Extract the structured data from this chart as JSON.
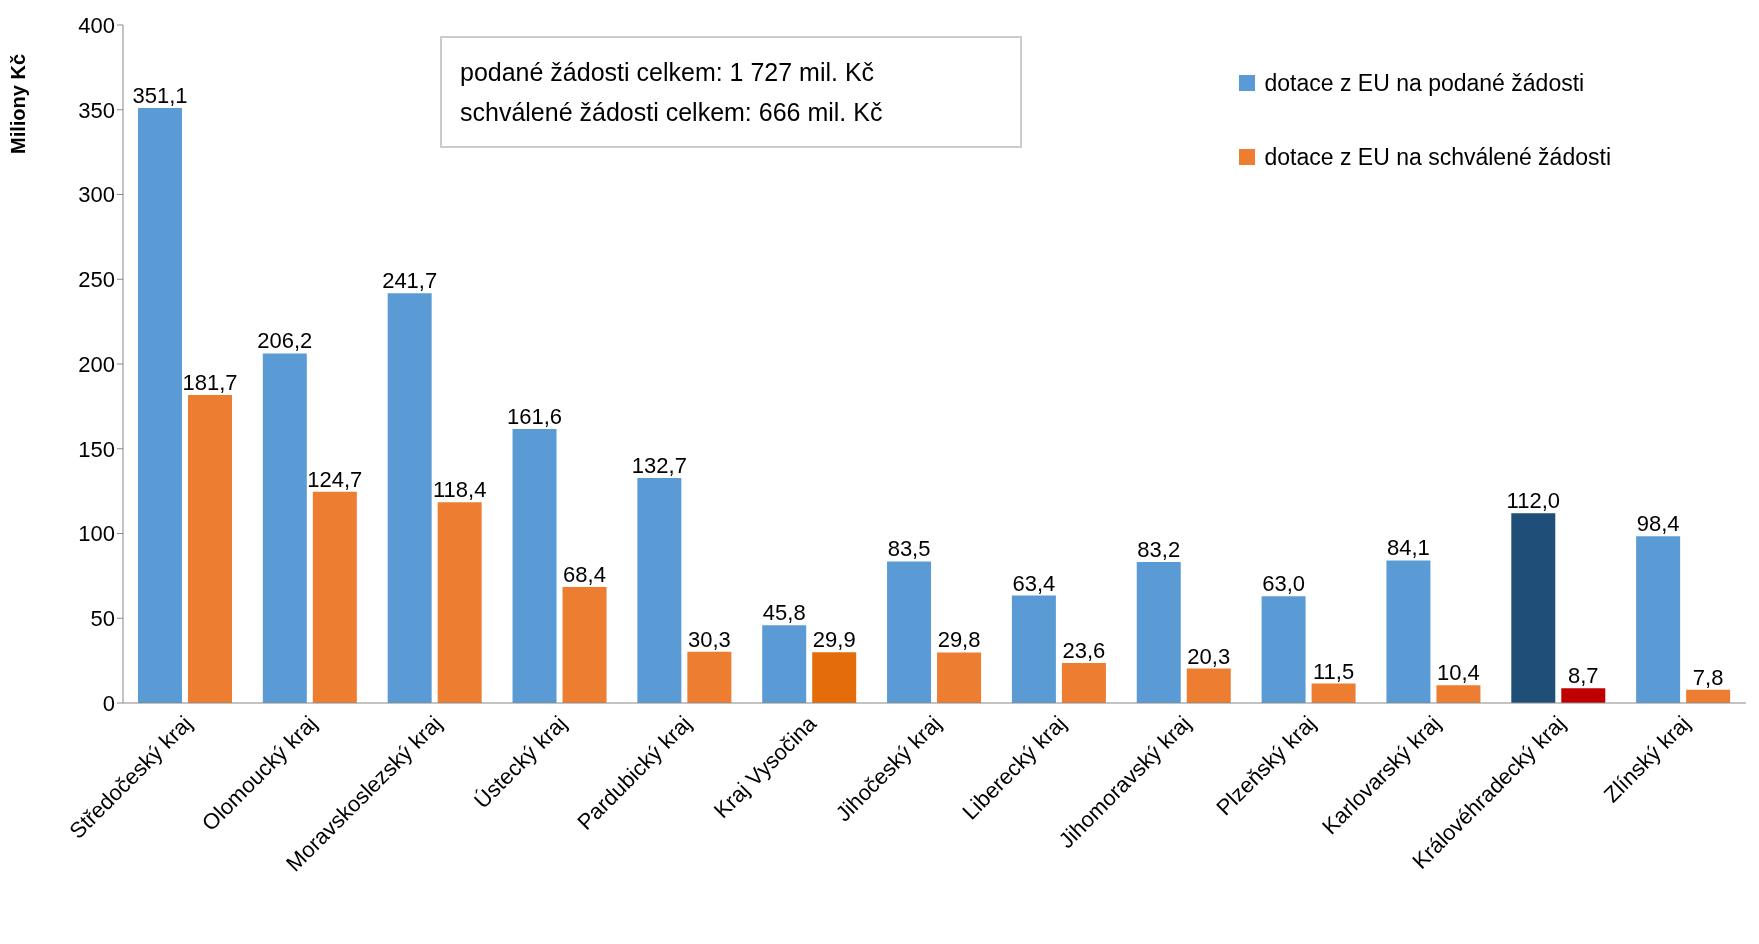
{
  "chart_data": {
    "type": "bar",
    "ylabel": "Miliony Kč",
    "categories": [
      "Středočeský kraj",
      "Olomoucký kraj",
      "Moravskoslezský kraj",
      "Ústecký kraj",
      "Pardubický kraj",
      "Kraj Vysočina",
      "Jihočeský kraj",
      "Liberecký kraj",
      "Jihomoravský kraj",
      "Plzeňský kraj",
      "Karlovarský kraj",
      "Královéhradecký kraj",
      "Zlínský kraj"
    ],
    "series": [
      {
        "name": "dotace z EU na podané žádosti",
        "color": "#5b9bd5",
        "colors": [
          "#5b9bd5",
          "#5b9bd5",
          "#5b9bd5",
          "#5b9bd5",
          "#5b9bd5",
          "#5b9bd5",
          "#5b9bd5",
          "#5b9bd5",
          "#5b9bd5",
          "#5b9bd5",
          "#5b9bd5",
          "#1f4e79",
          "#5b9bd5"
        ],
        "values": [
          351.1,
          206.2,
          241.7,
          161.6,
          132.7,
          45.8,
          83.5,
          63.4,
          83.2,
          63.0,
          84.1,
          112.0,
          98.4
        ],
        "value_labels": [
          "351,1",
          "206,2",
          "241,7",
          "161,6",
          "132,7",
          "45,8",
          "83,5",
          "63,4",
          "83,2",
          "63,0",
          "84,1",
          "112,0",
          "98,4"
        ]
      },
      {
        "name": "dotace z EU na schválené žádosti",
        "color": "#ed7d31",
        "colors": [
          "#ed7d31",
          "#ed7d31",
          "#ed7d31",
          "#ed7d31",
          "#ed7d31",
          "#e46c0a",
          "#ed7d31",
          "#ed7d31",
          "#ed7d31",
          "#ed7d31",
          "#ed7d31",
          "#c00000",
          "#ed7d31"
        ],
        "values": [
          181.7,
          124.7,
          118.4,
          68.4,
          30.3,
          29.9,
          29.8,
          23.6,
          20.3,
          11.5,
          10.4,
          8.7,
          7.8
        ],
        "value_labels": [
          "181,7",
          "124,7",
          "118,4",
          "68,4",
          "30,3",
          "29,9",
          "29,8",
          "23,6",
          "20,3",
          "11,5",
          "10,4",
          "8,7",
          "7,8"
        ]
      }
    ],
    "ylim": [
      0,
      400
    ],
    "yticks": [
      0,
      50,
      100,
      150,
      200,
      250,
      300,
      350,
      400
    ],
    "grid": false,
    "legend": "top right",
    "annotations": [
      "podané žádosti celkem: 1 727 mil. Kč",
      "schválené žádosti celkem: 666 mil. Kč"
    ]
  }
}
